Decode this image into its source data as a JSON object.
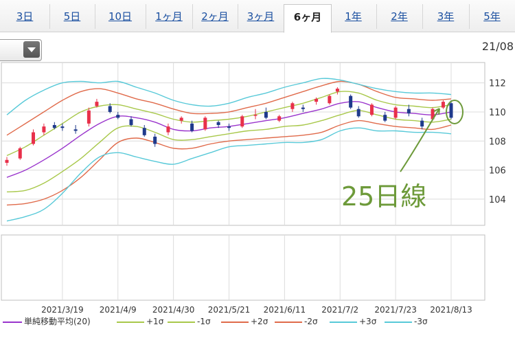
{
  "tabs": [
    {
      "label": "3日",
      "active": false
    },
    {
      "label": "5日",
      "active": false
    },
    {
      "label": "10日",
      "active": false
    },
    {
      "label": "1ヶ月",
      "active": false
    },
    {
      "label": "2ヶ月",
      "active": false
    },
    {
      "label": "3ヶ月",
      "active": false
    },
    {
      "label": "6ヶ月",
      "active": true
    },
    {
      "label": "1年",
      "active": false
    },
    {
      "label": "2年",
      "active": false
    },
    {
      "label": "3年",
      "active": false
    },
    {
      "label": "5年",
      "active": false
    }
  ],
  "header": {
    "date": "21/08",
    "dropdown_icon": "chevron-down-icon"
  },
  "annotation": {
    "label": "25日線",
    "color": "#6d9a3a"
  },
  "legend": [
    {
      "label": "単純移動平均(20)",
      "color": "#9933cc"
    },
    {
      "label": "+1σ",
      "color": "#a8c84a"
    },
    {
      "label": "-1σ",
      "color": "#a8c84a"
    },
    {
      "label": "+2σ",
      "color": "#e06a4a"
    },
    {
      "label": "-2σ",
      "color": "#e06a4a"
    },
    {
      "label": "+3σ",
      "color": "#57c9d8"
    },
    {
      "label": "-3σ",
      "color": "#57c9d8"
    }
  ],
  "chart_data": {
    "type": "line",
    "subtype": "candlestick-with-bollinger-bands",
    "x_tick_labels": [
      "2021/3/19",
      "2021/4/9",
      "2021/4/30",
      "2021/5/21",
      "2021/6/11",
      "2021/7/2",
      "2021/7/23",
      "2021/8/13"
    ],
    "y_tick_labels": [
      "112",
      "110",
      "108",
      "106",
      "104"
    ],
    "ylim": [
      102.2,
      113.4
    ],
    "grid": true,
    "colors": {
      "up": "#e8304a",
      "down": "#1f3a8c"
    },
    "series": [
      {
        "name": "単純移動平均(20)",
        "x": [
          "2021/2/26",
          "2021/3/5",
          "2021/3/12",
          "2021/3/19",
          "2021/3/26",
          "2021/4/2",
          "2021/4/9",
          "2021/4/16",
          "2021/4/23",
          "2021/4/30",
          "2021/5/7",
          "2021/5/14",
          "2021/5/21",
          "2021/5/28",
          "2021/6/4",
          "2021/6/11",
          "2021/6/18",
          "2021/6/25",
          "2021/7/2",
          "2021/7/9",
          "2021/7/16",
          "2021/7/23",
          "2021/7/30",
          "2021/8/6",
          "2021/8/13"
        ],
        "values": [
          105.5,
          106.0,
          106.7,
          107.5,
          108.4,
          109.2,
          109.7,
          109.6,
          109.3,
          108.8,
          108.7,
          108.9,
          109.0,
          109.2,
          109.4,
          109.6,
          109.9,
          110.2,
          110.6,
          110.7,
          110.3,
          110.0,
          109.9,
          109.8,
          110.0
        ]
      },
      {
        "name": "+1σ",
        "x": [
          "2021/2/26",
          "2021/3/5",
          "2021/3/12",
          "2021/3/19",
          "2021/3/26",
          "2021/4/2",
          "2021/4/9",
          "2021/4/16",
          "2021/4/23",
          "2021/4/30",
          "2021/5/7",
          "2021/5/14",
          "2021/5/21",
          "2021/5/28",
          "2021/6/4",
          "2021/6/11",
          "2021/6/18",
          "2021/6/25",
          "2021/7/2",
          "2021/7/9",
          "2021/7/16",
          "2021/7/23",
          "2021/7/30",
          "2021/8/6",
          "2021/8/13"
        ],
        "values": [
          107.0,
          107.6,
          108.4,
          109.2,
          110.0,
          110.4,
          110.5,
          110.2,
          109.9,
          109.5,
          109.3,
          109.4,
          109.5,
          109.7,
          110.0,
          110.3,
          110.6,
          111.0,
          111.4,
          111.3,
          110.8,
          110.5,
          110.4,
          110.3,
          110.5
        ]
      },
      {
        "name": "-1σ",
        "x": [
          "2021/2/26",
          "2021/3/5",
          "2021/3/12",
          "2021/3/19",
          "2021/3/26",
          "2021/4/2",
          "2021/4/9",
          "2021/4/16",
          "2021/4/23",
          "2021/4/30",
          "2021/5/7",
          "2021/5/14",
          "2021/5/21",
          "2021/5/28",
          "2021/6/4",
          "2021/6/11",
          "2021/6/18",
          "2021/6/25",
          "2021/7/2",
          "2021/7/9",
          "2021/7/16",
          "2021/7/23",
          "2021/7/30",
          "2021/8/6",
          "2021/8/13"
        ],
        "values": [
          104.5,
          104.6,
          105.1,
          105.9,
          106.8,
          107.9,
          108.9,
          109.0,
          108.6,
          108.1,
          108.1,
          108.3,
          108.5,
          108.7,
          108.8,
          109.0,
          109.1,
          109.4,
          109.8,
          110.1,
          109.8,
          109.5,
          109.4,
          109.3,
          109.5
        ]
      },
      {
        "name": "+2σ",
        "x": [
          "2021/2/26",
          "2021/3/5",
          "2021/3/12",
          "2021/3/19",
          "2021/3/26",
          "2021/4/2",
          "2021/4/9",
          "2021/4/16",
          "2021/4/23",
          "2021/4/30",
          "2021/5/7",
          "2021/5/14",
          "2021/5/21",
          "2021/5/28",
          "2021/6/4",
          "2021/6/11",
          "2021/6/18",
          "2021/6/25",
          "2021/7/2",
          "2021/7/9",
          "2021/7/16",
          "2021/7/23",
          "2021/7/30",
          "2021/8/6",
          "2021/8/13"
        ],
        "values": [
          108.4,
          109.2,
          110.0,
          110.8,
          111.4,
          111.6,
          111.3,
          110.9,
          110.6,
          110.2,
          109.9,
          109.9,
          110.0,
          110.3,
          110.6,
          111.0,
          111.4,
          111.8,
          112.1,
          111.9,
          111.4,
          111.0,
          110.9,
          110.8,
          110.9
        ]
      },
      {
        "name": "-2σ",
        "x": [
          "2021/2/26",
          "2021/3/5",
          "2021/3/12",
          "2021/3/19",
          "2021/3/26",
          "2021/4/2",
          "2021/4/9",
          "2021/4/16",
          "2021/4/23",
          "2021/4/30",
          "2021/5/7",
          "2021/5/14",
          "2021/5/21",
          "2021/5/28",
          "2021/6/4",
          "2021/6/11",
          "2021/6/18",
          "2021/6/25",
          "2021/7/2",
          "2021/7/9",
          "2021/7/16",
          "2021/7/23",
          "2021/7/30",
          "2021/8/6",
          "2021/8/13"
        ],
        "values": [
          103.6,
          103.7,
          104.0,
          104.6,
          105.5,
          106.7,
          107.9,
          108.2,
          107.9,
          107.5,
          107.5,
          107.8,
          108.0,
          108.1,
          108.2,
          108.3,
          108.4,
          108.6,
          109.1,
          109.4,
          109.2,
          109.0,
          108.9,
          108.8,
          109.1
        ]
      },
      {
        "name": "+3σ",
        "x": [
          "2021/2/26",
          "2021/3/5",
          "2021/3/12",
          "2021/3/19",
          "2021/3/26",
          "2021/4/2",
          "2021/4/9",
          "2021/4/16",
          "2021/4/23",
          "2021/4/30",
          "2021/5/7",
          "2021/5/14",
          "2021/5/21",
          "2021/5/28",
          "2021/6/4",
          "2021/6/11",
          "2021/6/18",
          "2021/6/25",
          "2021/7/2",
          "2021/7/9",
          "2021/7/16",
          "2021/7/23",
          "2021/7/30",
          "2021/8/6",
          "2021/8/13"
        ],
        "values": [
          109.8,
          110.8,
          111.5,
          112.0,
          112.1,
          112.0,
          112.1,
          111.7,
          111.3,
          110.8,
          110.5,
          110.4,
          110.6,
          111.0,
          111.3,
          111.7,
          112.0,
          112.3,
          112.2,
          111.9,
          111.6,
          111.4,
          111.3,
          111.3,
          111.2
        ]
      },
      {
        "name": "-3σ",
        "x": [
          "2021/2/26",
          "2021/3/5",
          "2021/3/12",
          "2021/3/19",
          "2021/3/26",
          "2021/4/2",
          "2021/4/9",
          "2021/4/16",
          "2021/4/23",
          "2021/4/30",
          "2021/5/7",
          "2021/5/14",
          "2021/5/21",
          "2021/5/28",
          "2021/6/4",
          "2021/6/11",
          "2021/6/18",
          "2021/6/25",
          "2021/7/2",
          "2021/7/9",
          "2021/7/16",
          "2021/7/23",
          "2021/7/30",
          "2021/8/6",
          "2021/8/13"
        ],
        "values": [
          102.5,
          102.8,
          103.3,
          104.4,
          105.8,
          106.9,
          107.2,
          106.9,
          106.6,
          106.4,
          106.8,
          107.2,
          107.6,
          107.7,
          107.8,
          107.9,
          107.9,
          108.1,
          108.7,
          108.9,
          108.7,
          108.7,
          108.6,
          108.6,
          108.5
        ]
      }
    ],
    "candles": [
      {
        "date": "2021/2/26",
        "open": 106.5,
        "high": 106.9,
        "low": 106.3,
        "close": 106.7
      },
      {
        "date": "2021/3/3",
        "open": 106.8,
        "high": 107.6,
        "low": 106.7,
        "close": 107.5
      },
      {
        "date": "2021/3/8",
        "open": 107.8,
        "high": 108.8,
        "low": 107.7,
        "close": 108.6
      },
      {
        "date": "2021/3/12",
        "open": 108.6,
        "high": 109.2,
        "low": 108.4,
        "close": 109.0
      },
      {
        "date": "2021/3/16",
        "open": 109.1,
        "high": 109.3,
        "low": 108.8,
        "close": 108.9
      },
      {
        "date": "2021/3/19",
        "open": 109.0,
        "high": 109.2,
        "low": 108.7,
        "close": 108.9
      },
      {
        "date": "2021/3/24",
        "open": 108.8,
        "high": 109.1,
        "low": 108.5,
        "close": 108.7
      },
      {
        "date": "2021/3/29",
        "open": 109.2,
        "high": 110.3,
        "low": 109.0,
        "close": 110.1
      },
      {
        "date": "2021/4/1",
        "open": 110.4,
        "high": 110.9,
        "low": 110.3,
        "close": 110.7
      },
      {
        "date": "2021/4/6",
        "open": 110.4,
        "high": 110.6,
        "low": 109.9,
        "close": 110.0
      },
      {
        "date": "2021/4/9",
        "open": 109.8,
        "high": 110.0,
        "low": 109.5,
        "close": 109.6
      },
      {
        "date": "2021/4/14",
        "open": 109.5,
        "high": 109.7,
        "low": 109.0,
        "close": 109.1
      },
      {
        "date": "2021/4/19",
        "open": 108.9,
        "high": 109.1,
        "low": 108.3,
        "close": 108.4
      },
      {
        "date": "2021/4/23",
        "open": 108.3,
        "high": 108.5,
        "low": 107.6,
        "close": 107.8
      },
      {
        "date": "2021/4/28",
        "open": 108.6,
        "high": 109.2,
        "low": 108.4,
        "close": 109.0
      },
      {
        "date": "2021/5/3",
        "open": 109.4,
        "high": 109.7,
        "low": 109.2,
        "close": 109.6
      },
      {
        "date": "2021/5/7",
        "open": 109.2,
        "high": 109.4,
        "low": 108.6,
        "close": 108.7
      },
      {
        "date": "2021/5/12",
        "open": 108.8,
        "high": 109.7,
        "low": 108.7,
        "close": 109.6
      },
      {
        "date": "2021/5/17",
        "open": 109.3,
        "high": 109.4,
        "low": 108.9,
        "close": 109.1
      },
      {
        "date": "2021/5/21",
        "open": 109.0,
        "high": 109.2,
        "low": 108.7,
        "close": 108.9
      },
      {
        "date": "2021/5/26",
        "open": 109.0,
        "high": 109.8,
        "low": 108.9,
        "close": 109.7
      },
      {
        "date": "2021/5/31",
        "open": 109.8,
        "high": 110.2,
        "low": 109.5,
        "close": 109.8
      },
      {
        "date": "2021/6/4",
        "open": 110.0,
        "high": 110.3,
        "low": 109.5,
        "close": 109.6
      },
      {
        "date": "2021/6/9",
        "open": 109.4,
        "high": 109.8,
        "low": 109.3,
        "close": 109.7
      },
      {
        "date": "2021/6/14",
        "open": 110.2,
        "high": 110.7,
        "low": 110.0,
        "close": 110.6
      },
      {
        "date": "2021/6/18",
        "open": 110.3,
        "high": 110.5,
        "low": 110.0,
        "close": 110.2
      },
      {
        "date": "2021/6/23",
        "open": 110.7,
        "high": 111.0,
        "low": 110.5,
        "close": 110.9
      },
      {
        "date": "2021/6/28",
        "open": 110.6,
        "high": 111.2,
        "low": 110.5,
        "close": 111.1
      },
      {
        "date": "2021/7/1",
        "open": 111.4,
        "high": 111.7,
        "low": 111.2,
        "close": 111.6
      },
      {
        "date": "2021/7/6",
        "open": 111.1,
        "high": 111.2,
        "low": 110.2,
        "close": 110.3
      },
      {
        "date": "2021/7/9",
        "open": 110.2,
        "high": 110.4,
        "low": 109.6,
        "close": 109.7
      },
      {
        "date": "2021/7/14",
        "open": 109.8,
        "high": 110.6,
        "low": 109.7,
        "close": 110.5
      },
      {
        "date": "2021/7/19",
        "open": 109.8,
        "high": 110.0,
        "low": 109.3,
        "close": 109.4
      },
      {
        "date": "2021/7/23",
        "open": 109.6,
        "high": 110.4,
        "low": 109.5,
        "close": 110.3
      },
      {
        "date": "2021/7/28",
        "open": 110.2,
        "high": 110.5,
        "low": 109.7,
        "close": 109.9
      },
      {
        "date": "2021/8/2",
        "open": 109.4,
        "high": 109.6,
        "low": 108.8,
        "close": 109.0
      },
      {
        "date": "2021/8/6",
        "open": 109.5,
        "high": 110.3,
        "low": 109.4,
        "close": 110.2
      },
      {
        "date": "2021/8/10",
        "open": 110.3,
        "high": 110.8,
        "low": 110.2,
        "close": 110.7
      },
      {
        "date": "2021/8/13",
        "open": 110.6,
        "high": 110.8,
        "low": 109.5,
        "close": 109.6
      }
    ]
  }
}
